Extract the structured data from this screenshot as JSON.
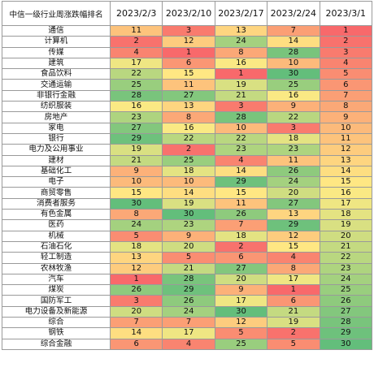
{
  "header": {
    "name_col": "中信一级行业周涨跌幅排名",
    "dates": [
      "2023/2/3",
      "2023/2/10",
      "2023/2/17",
      "2023/2/24",
      "2023/3/1"
    ]
  },
  "rows": [
    {
      "name": "通信",
      "ranks": [
        11,
        3,
        13,
        7,
        1
      ]
    },
    {
      "name": "计算机",
      "ranks": [
        2,
        12,
        24,
        14,
        2
      ]
    },
    {
      "name": "传媒",
      "ranks": [
        4,
        1,
        8,
        28,
        3
      ]
    },
    {
      "name": "建筑",
      "ranks": [
        17,
        6,
        16,
        10,
        4
      ]
    },
    {
      "name": "食品饮料",
      "ranks": [
        22,
        15,
        1,
        30,
        5
      ]
    },
    {
      "name": "交通运输",
      "ranks": [
        25,
        11,
        19,
        25,
        6
      ]
    },
    {
      "name": "非银行金融",
      "ranks": [
        28,
        27,
        21,
        16,
        7
      ]
    },
    {
      "name": "纺织服装",
      "ranks": [
        16,
        13,
        3,
        9,
        8
      ]
    },
    {
      "name": "房地产",
      "ranks": [
        23,
        8,
        28,
        22,
        9
      ]
    },
    {
      "name": "家电",
      "ranks": [
        27,
        16,
        10,
        3,
        10
      ]
    },
    {
      "name": "银行",
      "ranks": [
        29,
        22,
        22,
        18,
        11
      ]
    },
    {
      "name": "电力及公用事业",
      "ranks": [
        19,
        2,
        23,
        23,
        12
      ]
    },
    {
      "name": "建材",
      "ranks": [
        21,
        25,
        4,
        11,
        13
      ]
    },
    {
      "name": "基础化工",
      "ranks": [
        9,
        18,
        14,
        26,
        14
      ]
    },
    {
      "name": "电子",
      "ranks": [
        10,
        10,
        29,
        24,
        15
      ]
    },
    {
      "name": "商贸零售",
      "ranks": [
        15,
        14,
        15,
        20,
        16
      ]
    },
    {
      "name": "消费者服务",
      "ranks": [
        30,
        19,
        11,
        27,
        17
      ]
    },
    {
      "name": "有色金属",
      "ranks": [
        8,
        30,
        26,
        13,
        18
      ]
    },
    {
      "name": "医药",
      "ranks": [
        24,
        23,
        7,
        29,
        19
      ]
    },
    {
      "name": "机械",
      "ranks": [
        5,
        9,
        18,
        12,
        20
      ]
    },
    {
      "name": "石油石化",
      "ranks": [
        18,
        20,
        2,
        15,
        21
      ]
    },
    {
      "name": "轻工制造",
      "ranks": [
        13,
        5,
        6,
        4,
        22
      ]
    },
    {
      "name": "农林牧渔",
      "ranks": [
        12,
        21,
        27,
        8,
        23
      ]
    },
    {
      "name": "汽车",
      "ranks": [
        1,
        28,
        20,
        17,
        24
      ]
    },
    {
      "name": "煤炭",
      "ranks": [
        26,
        29,
        9,
        1,
        25
      ]
    },
    {
      "name": "国防军工",
      "ranks": [
        3,
        26,
        17,
        6,
        26
      ]
    },
    {
      "name": "电力设备及新能源",
      "ranks": [
        20,
        24,
        30,
        21,
        27
      ]
    },
    {
      "name": "综合",
      "ranks": [
        7,
        7,
        12,
        19,
        28
      ]
    },
    {
      "name": "钢铁",
      "ranks": [
        14,
        17,
        5,
        2,
        29
      ]
    },
    {
      "name": "综合金融",
      "ranks": [
        6,
        4,
        25,
        5,
        30
      ]
    }
  ],
  "color_scale": {
    "low": "#f8696b",
    "mid": "#ffeb84",
    "high": "#63be7b",
    "min": 1,
    "max": 30
  }
}
